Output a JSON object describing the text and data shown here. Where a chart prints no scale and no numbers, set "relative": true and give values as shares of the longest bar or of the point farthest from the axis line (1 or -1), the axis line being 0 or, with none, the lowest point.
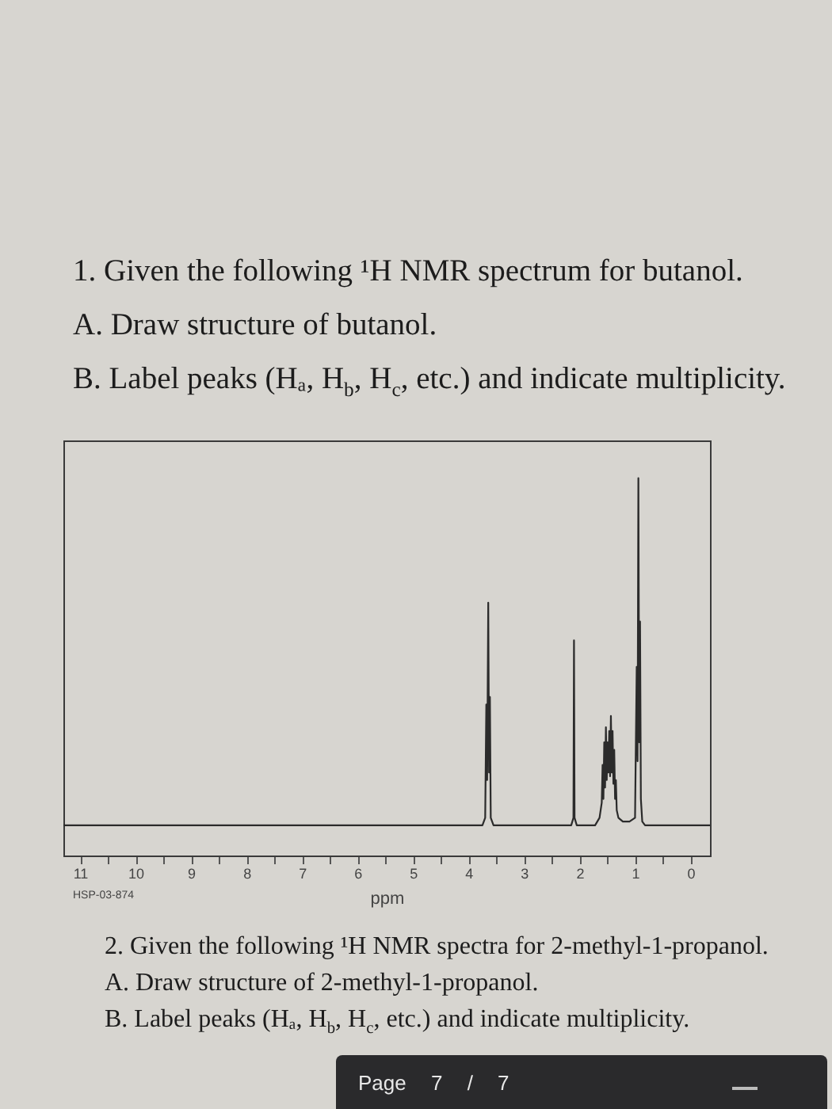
{
  "chart_data": {
    "type": "line",
    "title": "1. Given the following ¹H NMR spectrum for butanol.",
    "annotations": [
      "A. Draw structure of butanol.",
      "B. Label peaks (Hₐ, H$_{b}$, H$_{c}$, etc.) and indicate multiplicity.",
      "HSP-03-874",
      "2. Given the following ¹H NMR spectra for 2-methyl-1-propanol.",
      "A. Draw structure of 2-methyl-1-propanol.",
      "B. Label peaks (Hₐ, H$_{b}$, H$_{c}$, etc.) and indicate multiplicity.",
      "Page 7 / 7"
    ],
    "xlabel": "ppm",
    "relative": true,
    "xlim": [
      11.3,
      -0.35
    ],
    "xticks": [
      11,
      {
        "value": 10.5,
        "label": null
      },
      10,
      {
        "value": 9.5,
        "label": null
      },
      9,
      {
        "value": 8.5,
        "label": null
      },
      8,
      {
        "value": 7.5,
        "label": null
      },
      7,
      {
        "value": 6.5,
        "label": null
      },
      6,
      {
        "value": 5.5,
        "label": null
      },
      5,
      {
        "value": 4.5,
        "label": null
      },
      4,
      {
        "value": 3.5,
        "label": null
      },
      3,
      {
        "value": 2.5,
        "label": null
      },
      2,
      {
        "value": 1.5,
        "label": null
      },
      1,
      {
        "value": 0.5,
        "label": null
      },
      0
    ],
    "x": [
      11.3,
      3.75,
      3.7,
      3.68,
      3.665,
      3.645,
      3.63,
      3.615,
      3.6,
      3.55,
      2.15,
      2.11,
      2.1,
      2.09,
      2.05,
      1.72,
      1.64,
      1.6,
      1.585,
      1.57,
      1.555,
      1.54,
      1.525,
      1.51,
      1.495,
      1.48,
      1.465,
      1.45,
      1.435,
      1.42,
      1.405,
      1.39,
      1.375,
      1.36,
      1.345,
      1.33,
      1.3,
      1.22,
      1.1,
      1.0,
      0.97,
      0.955,
      0.94,
      0.925,
      0.91,
      0.895,
      0.87,
      0.82,
      -0.35
    ],
    "series": [
      {
        "color": "#2b2b2b",
        "values": [
          0.08,
          0.08,
          0.1,
          0.4,
          0.2,
          0.67,
          0.22,
          0.42,
          0.1,
          0.08,
          0.08,
          0.1,
          0.57,
          0.1,
          0.08,
          0.08,
          0.1,
          0.14,
          0.24,
          0.15,
          0.3,
          0.18,
          0.34,
          0.2,
          0.3,
          0.22,
          0.33,
          0.21,
          0.37,
          0.22,
          0.33,
          0.19,
          0.28,
          0.15,
          0.2,
          0.12,
          0.1,
          0.09,
          0.09,
          0.1,
          0.5,
          0.25,
          1.0,
          0.3,
          0.62,
          0.15,
          0.09,
          0.08,
          0.08
        ]
      }
    ]
  }
}
